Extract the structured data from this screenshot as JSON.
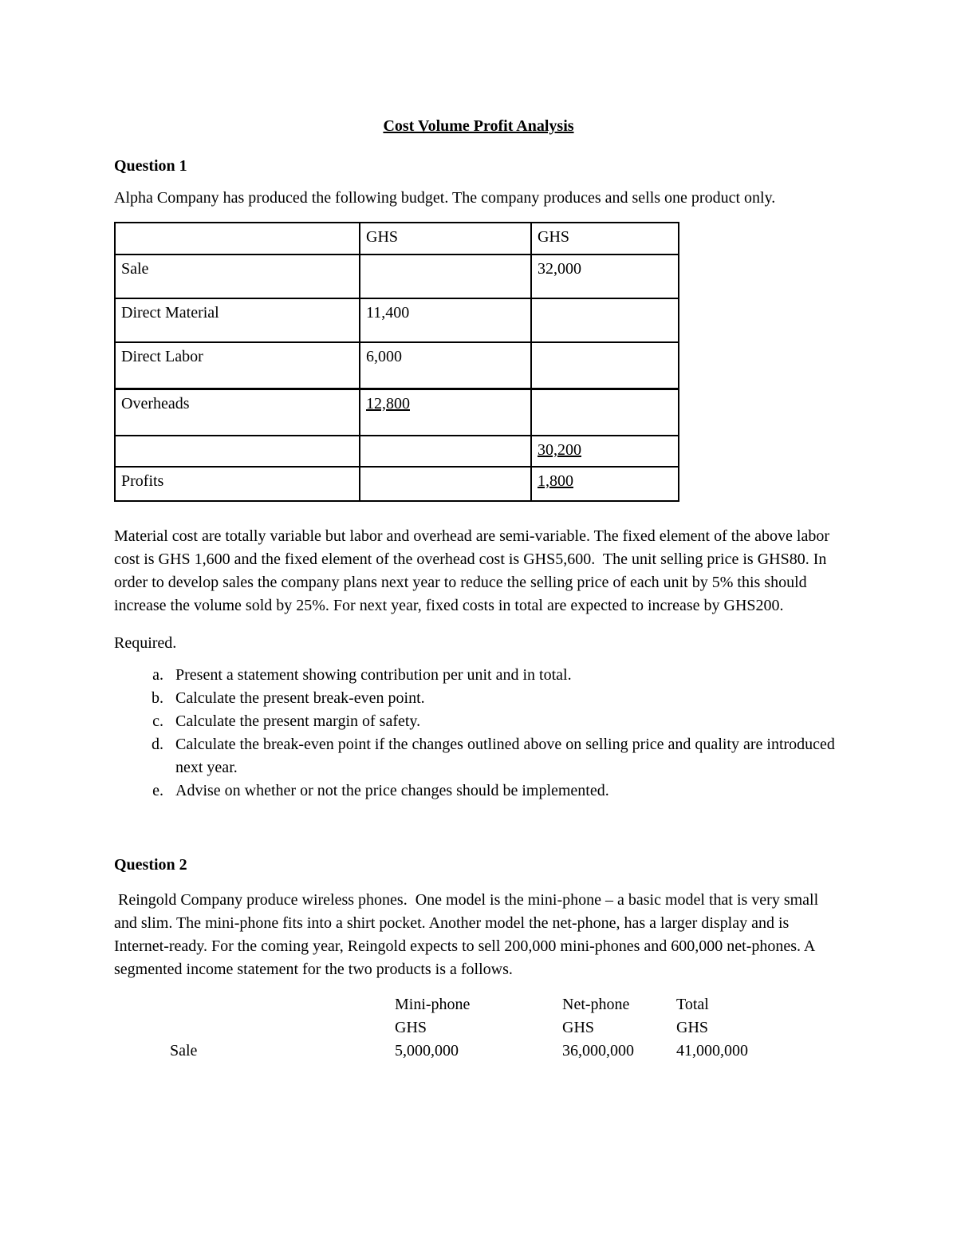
{
  "doc": {
    "title": "Cost Volume Profit Analysis"
  },
  "q1": {
    "heading": "Question 1",
    "intro": "Alpha Company has produced the following budget. The company produces and sells one product only.",
    "table": {
      "rows": [
        [
          "",
          "GHS",
          "GHS"
        ],
        [
          "Sale",
          "",
          "32,000"
        ],
        [
          "Direct Material",
          "11,400",
          ""
        ],
        [
          "Direct Labor",
          "6,000",
          ""
        ],
        [
          "Overheads",
          "12,800",
          ""
        ],
        [
          "",
          "",
          "30,200"
        ],
        [
          "Profits",
          "",
          "1,800"
        ]
      ]
    },
    "para": "Material cost are totally variable but labor and overhead are semi-variable. The fixed element of the above labor cost is GHS 1,600 and the fixed element of the overhead cost is GHS5,600.  The unit selling price is GHS80. In order to develop sales the company plans next year to reduce the selling price of each unit by 5% this should increase the volume sold by 25%. For next year, fixed costs in total are expected to increase by GHS200.",
    "required_label": "Required.",
    "requirements": [
      "Present a statement showing contribution per unit and in total.",
      "Calculate the present break-even point.",
      "Calculate the present margin of safety.",
      "Calculate the break-even point if the changes outlined above on selling price and quality are introduced next year.",
      "Advise on whether or not the price changes should be implemented."
    ]
  },
  "q2": {
    "heading": "Question 2",
    "intro": " Reingold Company produce wireless phones.  One model is the mini-phone – a basic model that is very small and slim. The mini-phone fits into a shirt pocket. Another model the net-phone, has a larger display and is Internet-ready. For the coming year, Reingold expects to sell 200,000 mini-phones and 600,000 net-phones. A segmented income statement for the two products is a follows.",
    "statement": {
      "col_headers": [
        "Mini-phone",
        "Net-phone",
        "Total"
      ],
      "units": [
        "GHS",
        "GHS",
        "GHS"
      ],
      "row_sale": {
        "label": "Sale",
        "mini": "5,000,000",
        "net": "36,000,000",
        "total": "41,000,000"
      }
    }
  }
}
